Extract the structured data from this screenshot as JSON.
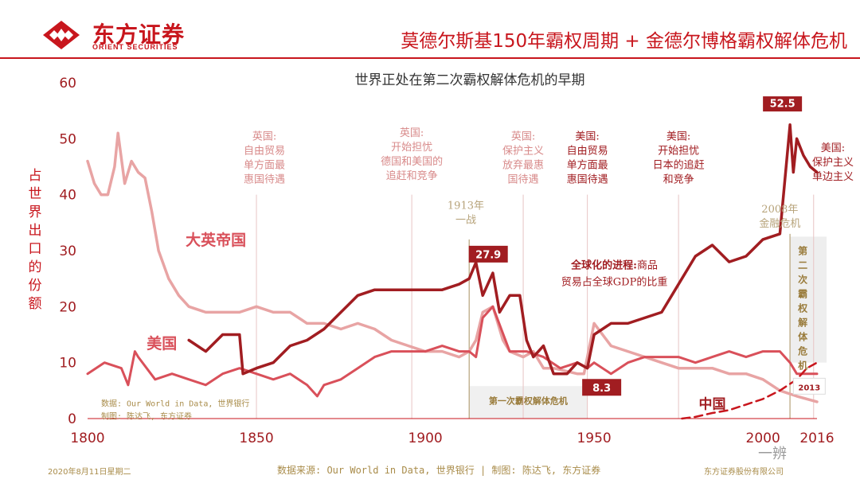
{
  "header": {
    "logo_cn": "东方证券",
    "logo_en": "ORIENT SECURITIES",
    "title": "莫德尔斯基150年霸权周期 + 金德尔博格霸权解体危机"
  },
  "colors": {
    "brand": "#c8161d",
    "uk": "#e8a4a4",
    "us": "#a11d21",
    "china": "#c8161d",
    "mid": "#d9505a",
    "gold": "#b7a37a"
  },
  "chart_data": {
    "type": "line",
    "title": "世界正处在第二次霸权解体危机的早期",
    "ylabel": "占世界出口的份额",
    "xlim": [
      1800,
      2016
    ],
    "ylim": [
      0,
      60
    ],
    "xticks": [
      1800,
      1850,
      1900,
      1950,
      2000,
      2016
    ],
    "yticks": [
      0,
      10,
      20,
      30,
      40,
      50,
      60
    ],
    "series": [
      {
        "name": "大英帝国",
        "x": [
          1800,
          1802,
          1804,
          1806,
          1808,
          1809,
          1811,
          1813,
          1815,
          1817,
          1819,
          1821,
          1824,
          1827,
          1830,
          1835,
          1840,
          1845,
          1850,
          1855,
          1860,
          1865,
          1870,
          1875,
          1880,
          1885,
          1890,
          1895,
          1900,
          1905,
          1910,
          1913,
          1915,
          1917,
          1920,
          1923,
          1925,
          1929,
          1932,
          1935,
          1938,
          1945,
          1947,
          1950,
          1955,
          1960,
          1965,
          1970,
          1975,
          1980,
          1985,
          1990,
          1995,
          2000,
          2005,
          2010,
          2016
        ],
        "values": [
          46,
          42,
          40,
          40,
          45,
          51,
          42,
          46,
          44,
          43,
          37,
          30,
          25,
          22,
          20,
          19,
          19,
          19,
          20,
          19,
          19,
          17,
          17,
          16,
          17,
          16,
          14,
          13,
          12,
          12,
          11,
          12,
          14,
          19,
          20,
          14,
          12,
          11,
          12,
          9,
          9,
          8,
          8,
          17,
          13,
          12,
          11,
          10,
          9,
          9,
          9,
          8,
          8,
          7,
          5,
          4,
          3
        ]
      },
      {
        "name": "美国",
        "x": [
          1800,
          1805,
          1810,
          1812,
          1814,
          1815,
          1820,
          1825,
          1830,
          1835,
          1840,
          1845,
          1850,
          1855,
          1860,
          1865,
          1868,
          1870,
          1875,
          1880,
          1885,
          1890,
          1895,
          1900,
          1905,
          1910,
          1913,
          1915,
          1917,
          1920,
          1925,
          1930,
          1935,
          1940,
          1945,
          1948,
          1950,
          1955,
          1960,
          1965,
          1970,
          1975,
          1980,
          1985,
          1990,
          1995,
          2000,
          2005,
          2008,
          2010,
          2014,
          2016
        ],
        "values": [
          8,
          10,
          9,
          6,
          12,
          11,
          7,
          8,
          7,
          6,
          8,
          9,
          8,
          7,
          8,
          6,
          4,
          6,
          7,
          9,
          11,
          12,
          12,
          12,
          13,
          12,
          12,
          11,
          18,
          20,
          12,
          12,
          11,
          9,
          10,
          9,
          10,
          8,
          10,
          11,
          11,
          11,
          10,
          11,
          12,
          11,
          12,
          12,
          10,
          8,
          8,
          8
        ]
      },
      {
        "name": "全球化的进程:商品贸易占全球GDP的比重",
        "x": [
          1830,
          1835,
          1840,
          1845,
          1846,
          1850,
          1855,
          1860,
          1865,
          1870,
          1875,
          1880,
          1885,
          1890,
          1895,
          1900,
          1905,
          1910,
          1913,
          1915,
          1917,
          1920,
          1922,
          1925,
          1928,
          1930,
          1932,
          1935,
          1938,
          1942,
          1945,
          1948,
          1950,
          1955,
          1960,
          1965,
          1970,
          1973,
          1975,
          1980,
          1985,
          1990,
          1995,
          2000,
          2005,
          2008,
          2009,
          2010,
          2012,
          2014,
          2016
        ],
        "values": [
          14,
          12,
          15,
          15,
          8,
          9,
          10,
          13,
          14,
          16,
          19,
          22,
          23,
          23,
          23,
          23,
          23,
          24,
          25,
          27.9,
          22,
          26,
          19,
          22,
          22,
          14,
          11,
          13,
          8,
          8,
          10,
          9,
          15,
          17,
          17,
          18,
          19,
          22,
          24,
          29,
          31,
          28,
          29,
          32,
          33,
          52.5,
          44,
          50,
          47,
          45,
          44
        ]
      },
      {
        "name": "中国",
        "x": [
          1976,
          1980,
          1985,
          1990,
          1995,
          2000,
          2005,
          2010,
          2013,
          2016
        ],
        "values": [
          0,
          0.3,
          1,
          1.5,
          2.5,
          3.5,
          5,
          7,
          9,
          10
        ]
      }
    ],
    "annotations": [
      {
        "year": 1850,
        "label": "英国:\n自由贸易\n单方面最\n惠国待遇",
        "tone": "light"
      },
      {
        "year": 1896,
        "label": "英国:\n开始担忧\n德国和美国的\n追赶和竞争",
        "tone": "light"
      },
      {
        "year": 1929,
        "label": "英国:\n保护主义\n放弃最惠\n国待遇",
        "tone": "light"
      },
      {
        "year": 1948,
        "label": "美国:\n自由贸易\n单方面最\n惠国待遇",
        "tone": "dark"
      },
      {
        "year": 1975,
        "label": "美国:\n开始担忧\n日本的追赶\n和竞争",
        "tone": "dark"
      },
      {
        "year": 2015,
        "label": "美国:\n保护主义\n单边主义",
        "tone": "dark"
      }
    ],
    "events": [
      {
        "label": "1913年\n一战",
        "year": 1913
      },
      {
        "label": "2008年\n金融危机",
        "year": 2008
      }
    ],
    "crisis_boxes": [
      {
        "label": "第一次霸权解体危机"
      },
      {
        "label": "第二次霸权解体危机"
      }
    ],
    "value_labels": [
      "27.9",
      "8.3",
      "52.5",
      "2013"
    ],
    "series_labels": {
      "uk": "大英帝国",
      "us": "美国",
      "china": "中国"
    },
    "globalization_note": {
      "title": "全球化的进程:",
      "rest": "商品",
      "line2": "贸易占全球GDP的比重"
    },
    "source_note": [
      "数据: Our World in Data, 世界银行",
      "制图: 陈达飞, 东方证券"
    ]
  },
  "footer": {
    "date": "2020年8月11日星期二",
    "source": "数据来源: Our World in Data, 世界银行 | 制图: 陈达飞, 东方证券",
    "company": "东方证券股份有限公司",
    "watermark": "一辨"
  }
}
